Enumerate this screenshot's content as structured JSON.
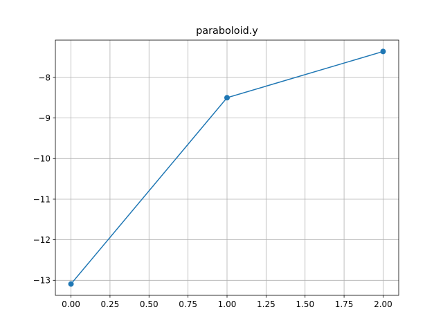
{
  "chart_data": {
    "type": "line",
    "title": "paraboloid.y",
    "xlabel": "",
    "ylabel": "",
    "grid": true,
    "x": [
      0.0,
      1.0,
      2.0
    ],
    "series": [
      {
        "values": [
          -13.09,
          -8.5,
          -7.36
        ],
        "color": "#1f77b4",
        "marker": "circle"
      }
    ],
    "xlim": [
      -0.1,
      2.1
    ],
    "ylim": [
      -13.37,
      -7.08
    ],
    "xticks": [
      0.0,
      0.25,
      0.5,
      0.75,
      1.0,
      1.25,
      1.5,
      1.75,
      2.0
    ],
    "xtick_labels": [
      "0.00",
      "0.25",
      "0.50",
      "0.75",
      "1.00",
      "1.25",
      "1.50",
      "1.75",
      "2.00"
    ],
    "yticks": [
      -13,
      -12,
      -11,
      -10,
      -9,
      -8
    ],
    "ytick_labels": [
      "−13",
      "−12",
      "−11",
      "−10",
      "−9",
      "−8"
    ]
  }
}
